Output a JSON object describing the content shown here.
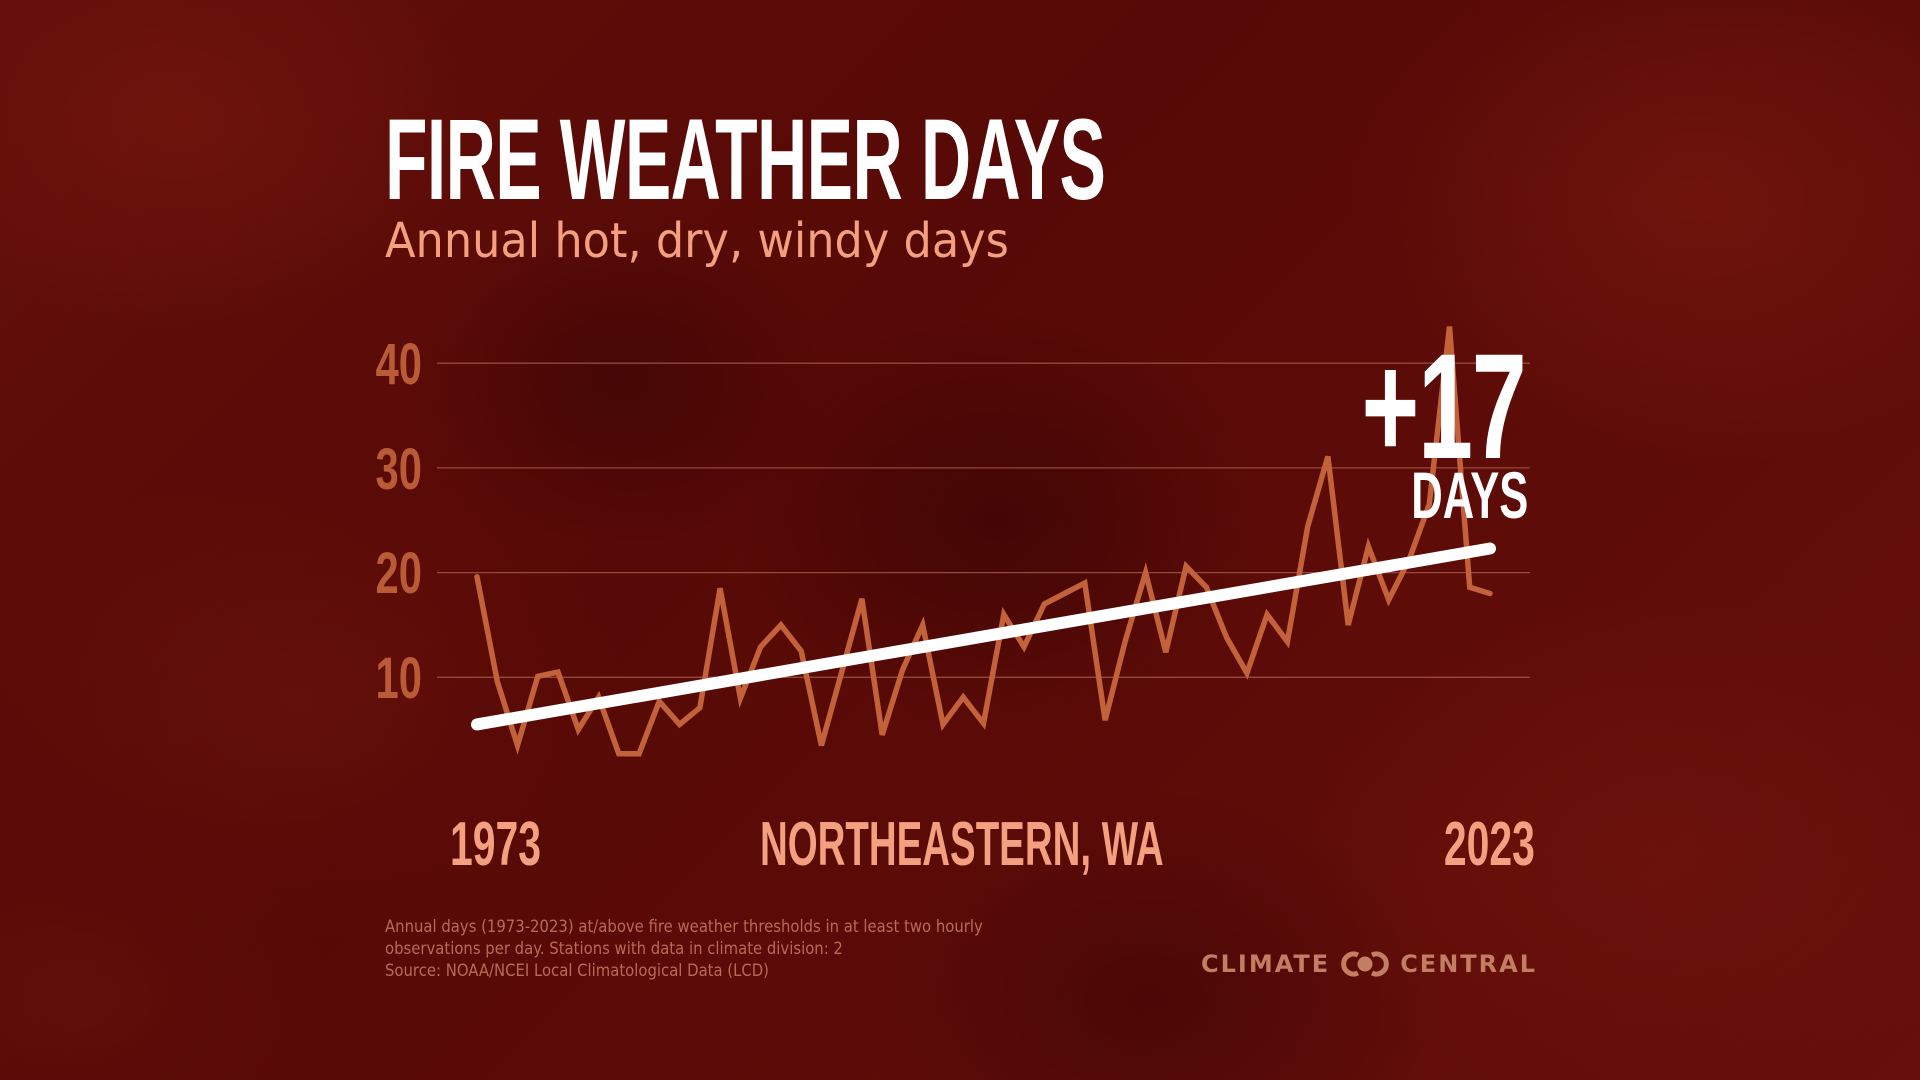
{
  "header": {
    "title": "FIRE WEATHER DAYS",
    "subtitle": "Annual hot, dry, windy days"
  },
  "annotation": {
    "change_value": "+17",
    "change_unit": "DAYS"
  },
  "x_axis": {
    "start_label": "1973",
    "end_label": "2023",
    "region_label": "NORTHEASTERN, WA"
  },
  "footnote": {
    "lines": [
      "Annual days (1973-2023) at/above fire weather thresholds in at least two hourly",
      "observations per day. Stations with data in climate division: 2",
      "Source: NOAA/NCEI Local Climatological Data (LCD)"
    ]
  },
  "branding": {
    "left_word": "CLIMATE",
    "right_word": "CENTRAL",
    "icon": "interlocking-circles-logo-icon"
  },
  "colors": {
    "background": "#5a0b07",
    "title": "#ffffff",
    "subtitle": "#f2a07f",
    "axis_tick": "#b95b36",
    "data_line": "#c2613a",
    "trend_line": "#ffffff",
    "gridline": "#a35a48",
    "footnote": "#b96a55",
    "logo": "#c27d62"
  },
  "chart_data": {
    "type": "line",
    "title": "FIRE WEATHER DAYS",
    "subtitle": "Annual hot, dry, windy days",
    "xlabel": "NORTHEASTERN, WA",
    "ylabel": "",
    "x": [
      1973,
      1974,
      1975,
      1976,
      1977,
      1978,
      1979,
      1980,
      1981,
      1982,
      1983,
      1984,
      1985,
      1986,
      1987,
      1988,
      1989,
      1990,
      1991,
      1992,
      1993,
      1994,
      1995,
      1996,
      1997,
      1998,
      1999,
      2000,
      2001,
      2002,
      2003,
      2004,
      2005,
      2006,
      2007,
      2008,
      2009,
      2010,
      2011,
      2012,
      2013,
      2014,
      2015,
      2016,
      2017,
      2018,
      2019,
      2020,
      2021,
      2022,
      2023
    ],
    "series": [
      {
        "name": "Annual fire weather days",
        "values": [
          19.6,
          9.6,
          3.5,
          10.1,
          10.5,
          5.0,
          8.1,
          2.7,
          2.7,
          7.7,
          5.5,
          7.1,
          18.5,
          8.0,
          12.9,
          15.0,
          12.5,
          3.5,
          10.5,
          17.5,
          4.5,
          10.7,
          15.0,
          5.5,
          8.1,
          5.6,
          16.0,
          12.9,
          17.0,
          18.0,
          19.0,
          5.9,
          13.5,
          20.0,
          12.4,
          20.6,
          18.6,
          13.8,
          10.4,
          16.0,
          13.4,
          24.4,
          31.1,
          15.0,
          22.5,
          17.4,
          21.2,
          26.5,
          43.5,
          18.6,
          18.0
        ]
      },
      {
        "name": "Trend",
        "x": [
          1973,
          2023
        ],
        "values": [
          5.5,
          22.3
        ]
      }
    ],
    "yticks": [
      10,
      20,
      30,
      40
    ],
    "xticks": [
      "1973",
      "2023"
    ],
    "ylim": [
      0,
      45
    ],
    "xlim": [
      1973,
      2023
    ],
    "grid": "horizontal",
    "legend": "none",
    "annotations": [
      "+17 DAYS"
    ]
  }
}
